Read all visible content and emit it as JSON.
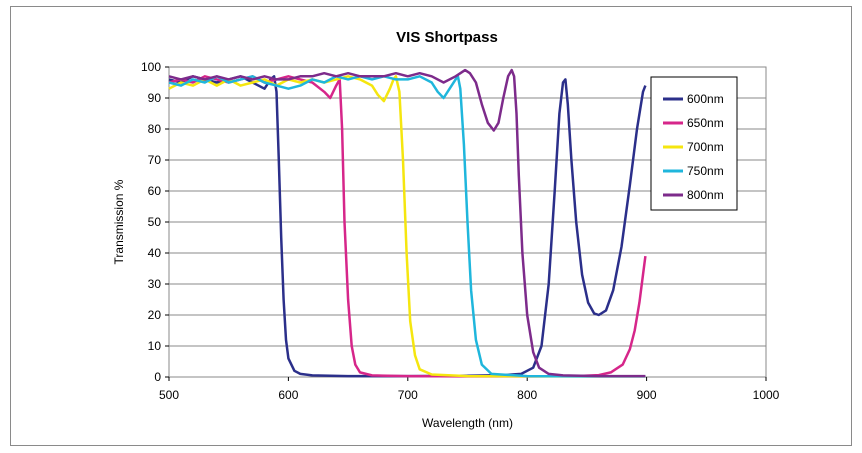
{
  "chart_data": {
    "type": "line",
    "title": "VIS Shortpass",
    "xlabel": "Wavelength (nm)",
    "ylabel": "Transmission %",
    "xlim": [
      500,
      1000
    ],
    "ylim": [
      0,
      100
    ],
    "xticks": [
      500,
      600,
      700,
      800,
      900,
      1000
    ],
    "yticks": [
      0,
      10,
      20,
      30,
      40,
      50,
      60,
      70,
      80,
      90,
      100
    ],
    "grid": true,
    "legend": "right",
    "series": [
      {
        "name": "600nm",
        "color": "#2b2f8a",
        "points": [
          [
            500,
            96
          ],
          [
            510,
            95
          ],
          [
            520,
            97
          ],
          [
            530,
            96
          ],
          [
            540,
            95
          ],
          [
            550,
            96
          ],
          [
            560,
            97
          ],
          [
            570,
            95
          ],
          [
            580,
            93
          ],
          [
            585,
            96
          ],
          [
            588,
            97
          ],
          [
            590,
            92
          ],
          [
            592,
            70
          ],
          [
            594,
            45
          ],
          [
            596,
            25
          ],
          [
            598,
            12
          ],
          [
            600,
            6
          ],
          [
            605,
            2
          ],
          [
            610,
            1
          ],
          [
            620,
            0.5
          ],
          [
            650,
            0.3
          ],
          [
            700,
            0.3
          ],
          [
            750,
            0.4
          ],
          [
            780,
            0.6
          ],
          [
            795,
            1
          ],
          [
            805,
            3
          ],
          [
            812,
            10
          ],
          [
            818,
            30
          ],
          [
            823,
            60
          ],
          [
            827,
            85
          ],
          [
            830,
            95
          ],
          [
            832,
            96
          ],
          [
            834,
            88
          ],
          [
            837,
            70
          ],
          [
            841,
            50
          ],
          [
            846,
            33
          ],
          [
            851,
            24
          ],
          [
            856,
            20.5
          ],
          [
            860,
            20
          ],
          [
            866,
            21.5
          ],
          [
            872,
            28
          ],
          [
            879,
            42
          ],
          [
            886,
            62
          ],
          [
            892,
            80
          ],
          [
            897,
            92
          ],
          [
            899,
            94
          ]
        ]
      },
      {
        "name": "650nm",
        "color": "#d6268a",
        "points": [
          [
            500,
            95
          ],
          [
            510,
            96
          ],
          [
            520,
            95
          ],
          [
            530,
            97
          ],
          [
            540,
            96
          ],
          [
            550,
            95
          ],
          [
            560,
            96
          ],
          [
            570,
            97
          ],
          [
            580,
            95
          ],
          [
            590,
            96
          ],
          [
            600,
            97
          ],
          [
            610,
            96
          ],
          [
            620,
            95
          ],
          [
            630,
            92
          ],
          [
            635,
            90
          ],
          [
            640,
            94
          ],
          [
            643,
            96
          ],
          [
            645,
            80
          ],
          [
            647,
            50
          ],
          [
            650,
            25
          ],
          [
            653,
            10
          ],
          [
            656,
            4
          ],
          [
            660,
            1.5
          ],
          [
            670,
            0.5
          ],
          [
            700,
            0.3
          ],
          [
            750,
            0.2
          ],
          [
            800,
            0.2
          ],
          [
            840,
            0.3
          ],
          [
            860,
            0.6
          ],
          [
            870,
            1.5
          ],
          [
            880,
            4
          ],
          [
            886,
            9
          ],
          [
            890,
            15
          ],
          [
            894,
            24
          ],
          [
            897,
            33
          ],
          [
            899,
            39
          ]
        ]
      },
      {
        "name": "700nm",
        "color": "#f5e60f",
        "points": [
          [
            500,
            93
          ],
          [
            510,
            95
          ],
          [
            520,
            94
          ],
          [
            530,
            96
          ],
          [
            540,
            94
          ],
          [
            550,
            96
          ],
          [
            560,
            94
          ],
          [
            570,
            95
          ],
          [
            580,
            96
          ],
          [
            590,
            94
          ],
          [
            600,
            96
          ],
          [
            610,
            95
          ],
          [
            620,
            96
          ],
          [
            630,
            95
          ],
          [
            640,
            96
          ],
          [
            650,
            97
          ],
          [
            660,
            96
          ],
          [
            670,
            94
          ],
          [
            675,
            91
          ],
          [
            680,
            89
          ],
          [
            685,
            93
          ],
          [
            688,
            96
          ],
          [
            690,
            97
          ],
          [
            693,
            92
          ],
          [
            696,
            70
          ],
          [
            699,
            40
          ],
          [
            702,
            18
          ],
          [
            706,
            7
          ],
          [
            710,
            2.5
          ],
          [
            720,
            0.8
          ],
          [
            750,
            0.3
          ],
          [
            800,
            0.2
          ],
          [
            850,
            0.2
          ],
          [
            899,
            0.2
          ]
        ]
      },
      {
        "name": "750nm",
        "color": "#1fb6dc",
        "points": [
          [
            500,
            95
          ],
          [
            510,
            94
          ],
          [
            520,
            96
          ],
          [
            530,
            95
          ],
          [
            540,
            97
          ],
          [
            550,
            95
          ],
          [
            560,
            96
          ],
          [
            570,
            97
          ],
          [
            580,
            95
          ],
          [
            590,
            94
          ],
          [
            600,
            93
          ],
          [
            610,
            94
          ],
          [
            620,
            96
          ],
          [
            630,
            95
          ],
          [
            640,
            97
          ],
          [
            650,
            96
          ],
          [
            660,
            97
          ],
          [
            670,
            96
          ],
          [
            680,
            97
          ],
          [
            690,
            96
          ],
          [
            700,
            96
          ],
          [
            710,
            97
          ],
          [
            720,
            95
          ],
          [
            725,
            92
          ],
          [
            730,
            90
          ],
          [
            735,
            93
          ],
          [
            740,
            96
          ],
          [
            742,
            97
          ],
          [
            744,
            93
          ],
          [
            747,
            75
          ],
          [
            750,
            50
          ],
          [
            753,
            28
          ],
          [
            757,
            12
          ],
          [
            762,
            4
          ],
          [
            770,
            1
          ],
          [
            800,
            0.3
          ],
          [
            850,
            0.2
          ],
          [
            899,
            0.2
          ]
        ]
      },
      {
        "name": "800nm",
        "color": "#7d2b8b",
        "points": [
          [
            500,
            97
          ],
          [
            510,
            96
          ],
          [
            520,
            97
          ],
          [
            530,
            96
          ],
          [
            540,
            97
          ],
          [
            550,
            96
          ],
          [
            560,
            97
          ],
          [
            570,
            96
          ],
          [
            580,
            97
          ],
          [
            590,
            96
          ],
          [
            600,
            96
          ],
          [
            610,
            97
          ],
          [
            620,
            97
          ],
          [
            630,
            98
          ],
          [
            640,
            97
          ],
          [
            650,
            98
          ],
          [
            660,
            97
          ],
          [
            670,
            97
          ],
          [
            680,
            97
          ],
          [
            690,
            98
          ],
          [
            700,
            97
          ],
          [
            710,
            98
          ],
          [
            720,
            97
          ],
          [
            730,
            95
          ],
          [
            740,
            97
          ],
          [
            748,
            99
          ],
          [
            752,
            98
          ],
          [
            757,
            95
          ],
          [
            762,
            88
          ],
          [
            767,
            82
          ],
          [
            772,
            79.5
          ],
          [
            776,
            82
          ],
          [
            780,
            90
          ],
          [
            784,
            97
          ],
          [
            787,
            99
          ],
          [
            789,
            97
          ],
          [
            791,
            85
          ],
          [
            793,
            65
          ],
          [
            796,
            40
          ],
          [
            800,
            20
          ],
          [
            805,
            8
          ],
          [
            810,
            3
          ],
          [
            818,
            1
          ],
          [
            830,
            0.5
          ],
          [
            860,
            0.3
          ],
          [
            899,
            0.3
          ]
        ]
      }
    ]
  }
}
